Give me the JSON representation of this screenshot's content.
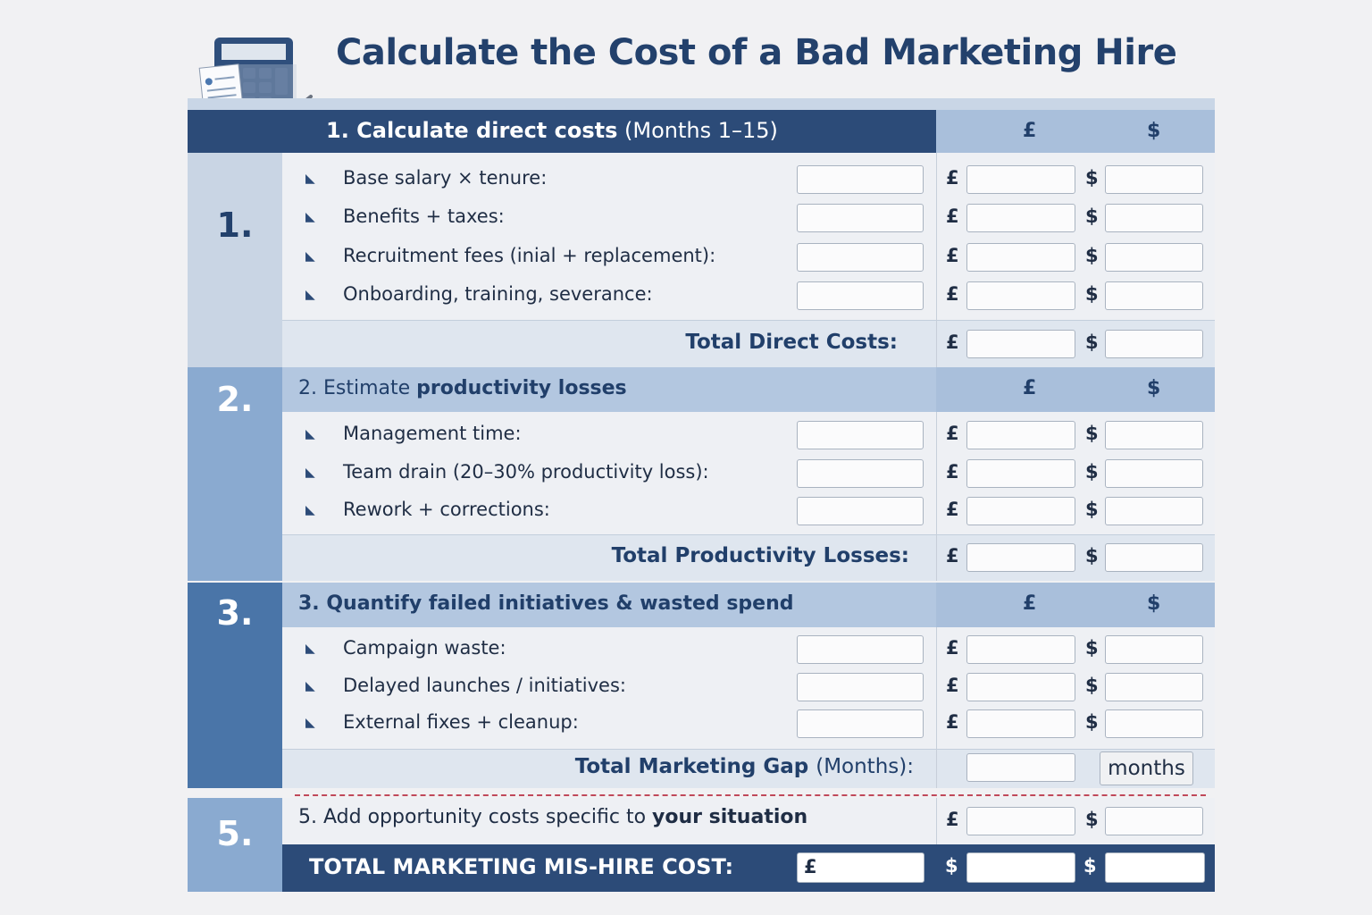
{
  "title": "Calculate the Cost of a Bad Marketing Hire",
  "icon": "calculator-document-icon",
  "colors": {
    "navy": "#2c4b78",
    "light_blue": "#b3c7e0",
    "mid_blue": "#8aaad0",
    "dark_blue": "#4a75a8"
  },
  "currency": {
    "gbp": "£",
    "usd": "$"
  },
  "sections": [
    {
      "number": "1.",
      "heading_bold": "1. Calculate direct costs",
      "heading_rest": "(Months 1–15)",
      "items": [
        "Base salary × tenure:",
        "Benefits + taxes:",
        "Recruitment fees (inial + replacement):",
        "Onboarding, training, severance:"
      ],
      "total_label": "Total Direct Costs:"
    },
    {
      "number": "2.",
      "heading_rest": "2. Estimate",
      "heading_bold": "productivity losses",
      "items": [
        "Management time:",
        "Team drain (20–30% productivity loss):",
        "Rework + corrections:"
      ],
      "total_label": "Total Productivity Losses:"
    },
    {
      "number": "3.",
      "heading_bold": "3. Quantify failed initiatives & wasted spend",
      "items": [
        "Campaign waste:",
        "Delayed launches / initiatives:",
        "External fixes + cleanup:"
      ],
      "total_label": "Total Marketing Gap",
      "total_suffix": "(Months):",
      "unit": "months"
    }
  ],
  "section5": {
    "number": "5.",
    "text": "5. Add opportunity costs specific to",
    "text_bold": "your situation"
  },
  "grand_total": {
    "label": "TOTAL MARKETING MIS-HIRE COST:"
  }
}
